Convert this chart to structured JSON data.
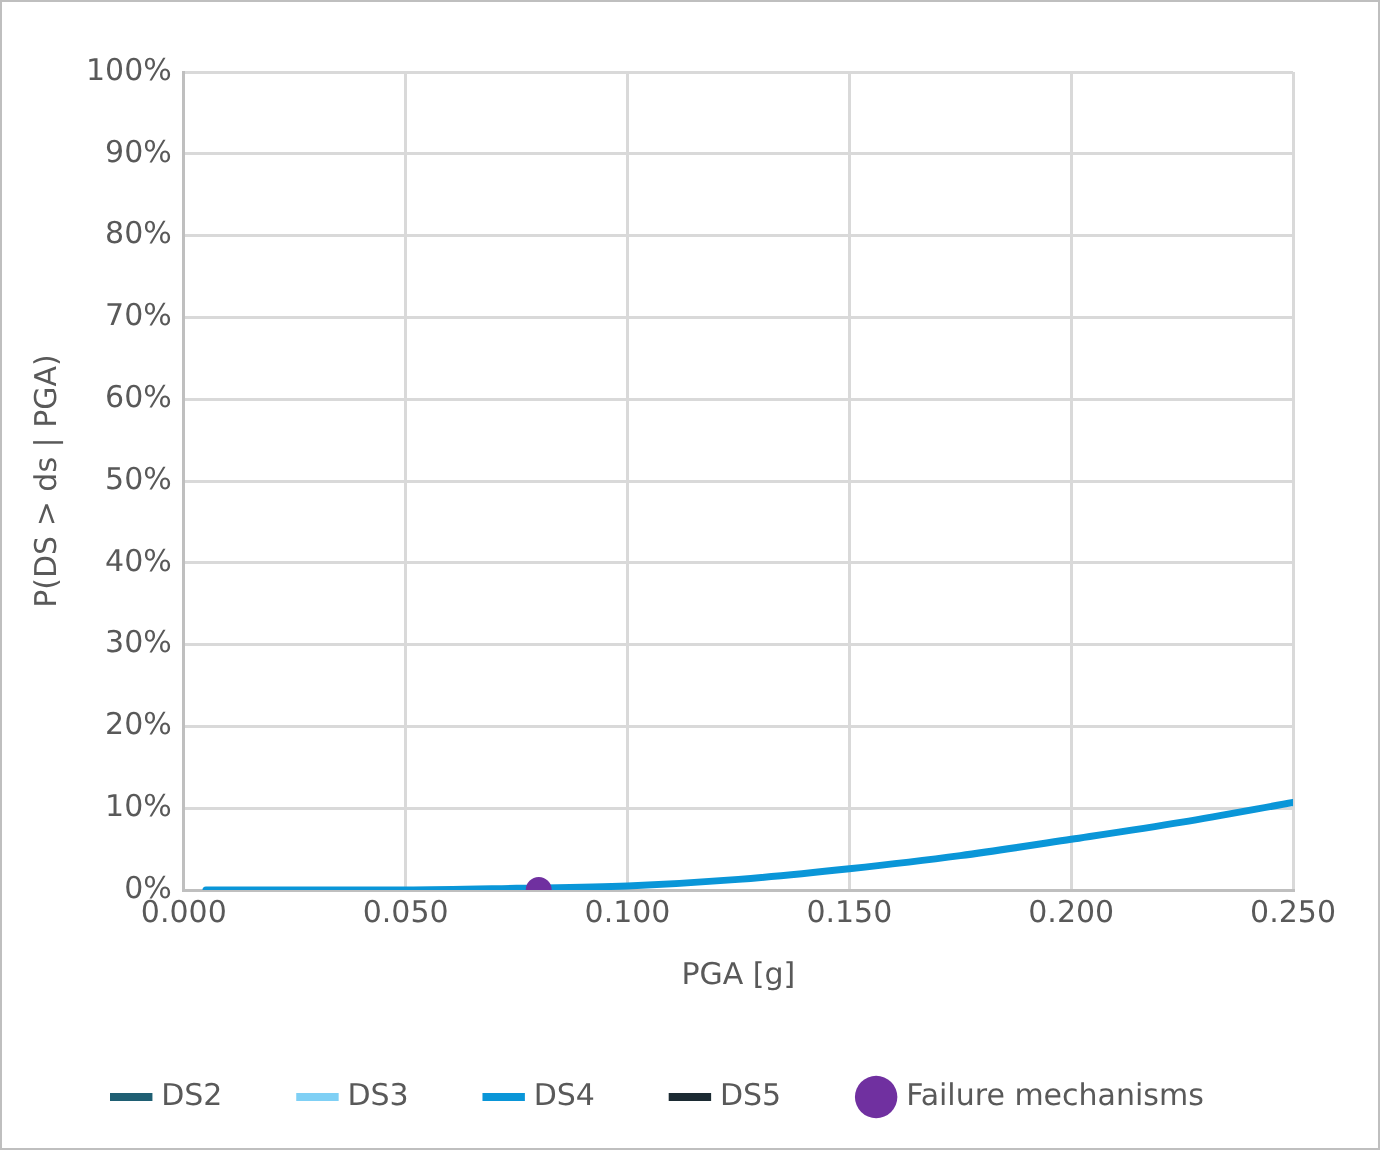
{
  "chart_data": {
    "type": "line",
    "xlabel": "PGA [g]",
    "ylabel": "P(DS > ds | PGA)",
    "x": [
      0.005,
      0.025,
      0.05,
      0.075,
      0.1,
      0.125,
      0.15,
      0.175,
      0.2,
      0.225,
      0.25
    ],
    "series": [
      {
        "name": "DS2",
        "color": "#1f5f73",
        "values": [
          null,
          null,
          null,
          null,
          null,
          null,
          null,
          null,
          null,
          null,
          null
        ]
      },
      {
        "name": "DS3",
        "color": "#7fd0f5",
        "values": [
          null,
          null,
          null,
          null,
          null,
          null,
          null,
          null,
          null,
          null,
          null
        ]
      },
      {
        "name": "DS4",
        "color": "#0a96d8",
        "values": [
          0,
          0,
          0,
          0.2,
          0.5,
          1.3,
          2.6,
          4.2,
          6.2,
          8.3,
          10.7
        ]
      },
      {
        "name": "DS5",
        "color": "#1c2b33",
        "values": [
          null,
          null,
          null,
          null,
          null,
          null,
          null,
          null,
          null,
          null,
          null
        ]
      },
      {
        "name": "Failure mechanisms",
        "type": "scatter",
        "color": "#7030a0",
        "x": [
          0.08
        ],
        "values": [
          0
        ]
      }
    ],
    "xlim": [
      0,
      0.25
    ],
    "xticks": [
      {
        "value": 0,
        "label": "0.000"
      },
      {
        "value": 0.05,
        "label": "0.050"
      },
      {
        "value": 0.1,
        "label": "0.100"
      },
      {
        "value": 0.15,
        "label": "0.150"
      },
      {
        "value": 0.2,
        "label": "0.200"
      },
      {
        "value": 0.25,
        "label": "0.250"
      }
    ],
    "ylim": [
      0,
      100
    ],
    "yticks": [
      {
        "value": 0,
        "label": "0%"
      },
      {
        "value": 10,
        "label": "10%"
      },
      {
        "value": 20,
        "label": "20%"
      },
      {
        "value": 30,
        "label": "30%"
      },
      {
        "value": 40,
        "label": "40%"
      },
      {
        "value": 50,
        "label": "50%"
      },
      {
        "value": 60,
        "label": "60%"
      },
      {
        "value": 70,
        "label": "70%"
      },
      {
        "value": 80,
        "label": "80%"
      },
      {
        "value": 90,
        "label": "90%"
      },
      {
        "value": 100,
        "label": "100%"
      }
    ],
    "grid": true,
    "legend": "bottom",
    "line_style": "solid"
  }
}
